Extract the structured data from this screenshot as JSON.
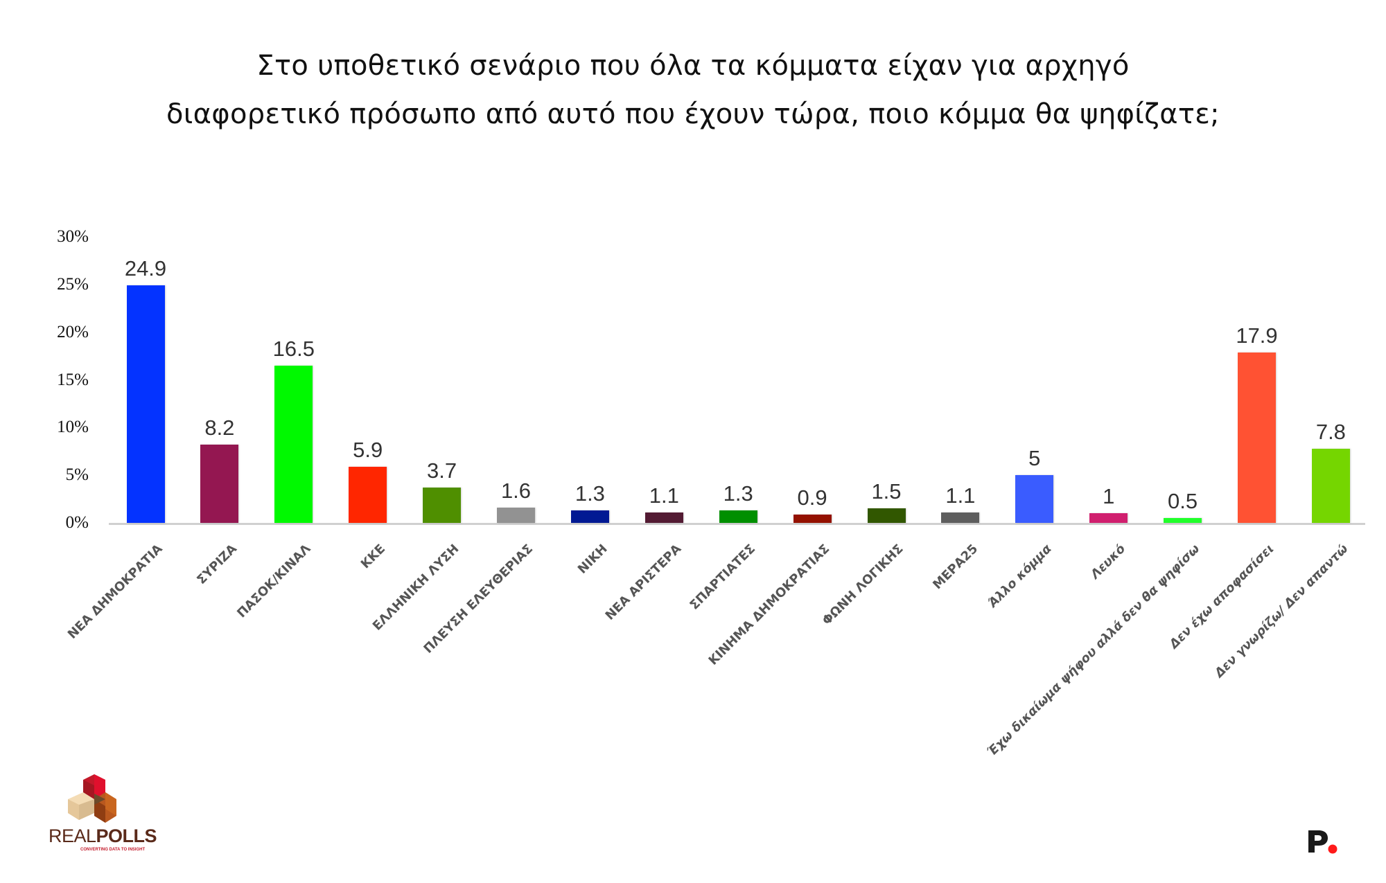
{
  "title": {
    "line1": "Στο υποθετικό σενάριο που όλα τα κόμματα είχαν για αρχηγό",
    "line2": "διαφορετικό πρόσωπο από αυτό που έχουν τώρα, ποιο κόμμα θα ψηφίζατε;"
  },
  "y_axis": {
    "ticks": [
      "30%",
      "25%",
      "20%",
      "15%",
      "10%",
      "5%",
      "0%"
    ]
  },
  "logos": {
    "left": {
      "name": "REALPOLLS",
      "real": "REAL",
      "polls": "POLLS",
      "tagline": "CONVERTING DATA TO INSIGHT"
    },
    "right": {
      "name": "P."
    }
  },
  "chart_data": {
    "type": "bar",
    "title": "Στο υποθετικό σενάριο που όλα τα κόμματα είχαν για αρχηγό διαφορετικό πρόσωπο από αυτό που έχουν τώρα, ποιο κόμμα θα ψηφίζατε;",
    "xlabel": "",
    "ylabel": "",
    "ylim": [
      0,
      30
    ],
    "yticks": [
      0,
      5,
      10,
      15,
      20,
      25,
      30
    ],
    "ytick_labels": [
      "0%",
      "5%",
      "10%",
      "15%",
      "20%",
      "25%",
      "30%"
    ],
    "grid": false,
    "legend": null,
    "categories": [
      "ΝΕΑ ΔΗΜΟΚΡΑΤΙΑ",
      "ΣΥΡΙΖΑ",
      "ΠΑΣΟΚ/ΚΙΝΑΛ",
      "ΚΚΕ",
      "ΕΛΛΗΝΙΚΗ ΛΥΣΗ",
      "ΠΛΕΥΣΗ ΕΛΕΥΘΕΡΙΑΣ",
      "ΝΙΚΗ",
      "ΝΕΑ ΑΡΙΣΤΕΡΑ",
      "ΣΠΑΡΤΙΑΤΕΣ",
      "ΚΙΝΗΜΑ ΔΗΜΟΚΡΑΤΙΑΣ",
      "ΦΩΝΗ ΛΟΓΙΚΗΣ",
      "ΜΕΡΑ25",
      "Άλλο κόμμα",
      "Λευκό",
      "Έχω δικαίωμα ψήφου αλλά δεν θα ψηφίσω",
      "Δεν έχω αποφασίσει",
      "Δεν γνωρίζω/ Δεν απαντώ"
    ],
    "values": [
      24.9,
      8.2,
      16.5,
      5.9,
      3.7,
      1.6,
      1.3,
      1.1,
      1.3,
      0.9,
      1.5,
      1.1,
      5,
      1,
      0.5,
      17.9,
      7.8
    ],
    "value_labels": [
      "24.9",
      "8.2",
      "16.5",
      "5.9",
      "3.7",
      "1.6",
      "1.3",
      "1.1",
      "1.3",
      "0.9",
      "1.5",
      "1.1",
      "5",
      "1",
      "0.5",
      "17.9",
      "7.8"
    ],
    "colors": [
      "#0433ff",
      "#941751",
      "#00f900",
      "#ff2600",
      "#4f8f00",
      "#929292",
      "#011993",
      "#531b33",
      "#008f00",
      "#941100",
      "#315700",
      "#5e5e5e",
      "#3a5cff",
      "#d01f6e",
      "#21ff2b",
      "#ff5233",
      "#75d600"
    ],
    "italic_labels": [
      false,
      false,
      false,
      false,
      false,
      false,
      false,
      false,
      false,
      false,
      false,
      false,
      true,
      true,
      true,
      true,
      true
    ]
  }
}
